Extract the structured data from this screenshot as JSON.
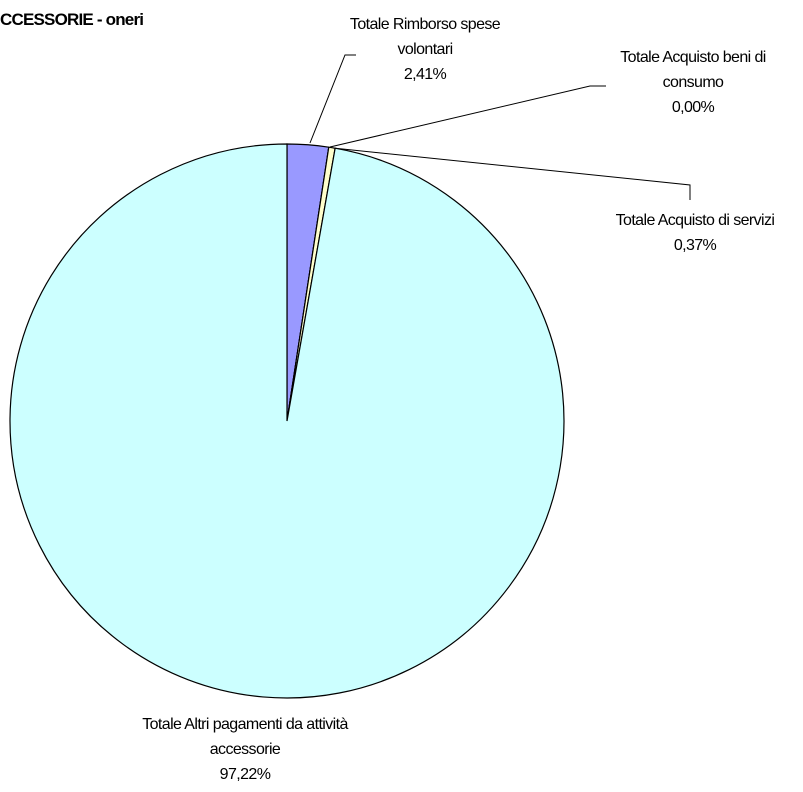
{
  "chart_data": {
    "type": "pie",
    "title": "CCESSORIE - oneri",
    "categories": [
      "Totale Rimborso spese volontari",
      "Totale Acquisto beni di consumo",
      "Totale Acquisto di servizi",
      "Totale Altri pagamenti da attività accessorie"
    ],
    "values": [
      2.41,
      0.0,
      0.37,
      97.22
    ],
    "value_labels": [
      "2,41%",
      "0,00%",
      "0,37%",
      "97,22%"
    ],
    "colors": [
      "#9999ff",
      "#993366",
      "#ffffcc",
      "#ccffff"
    ]
  }
}
